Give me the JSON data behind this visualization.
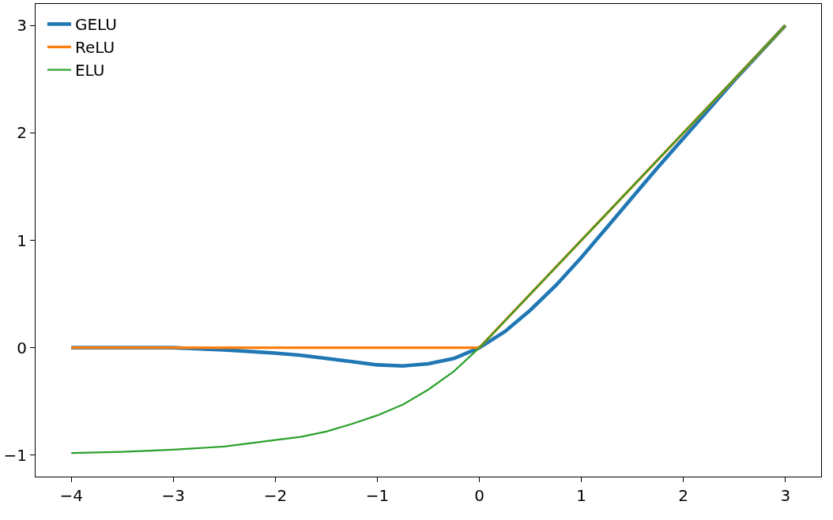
{
  "chart_data": {
    "type": "line",
    "series": [
      {
        "name": "GELU",
        "color": "#1f77b4",
        "x": [
          -4,
          -3.5,
          -3,
          -2.5,
          -2,
          -1.75,
          -1.5,
          -1.25,
          -1,
          -0.75,
          -0.5,
          -0.25,
          0,
          0.25,
          0.5,
          0.75,
          1,
          1.25,
          1.5,
          1.75,
          2,
          2.5,
          3
        ],
        "values": [
          0,
          0,
          0,
          -0.02,
          -0.05,
          -0.07,
          -0.1,
          -0.13,
          -0.16,
          -0.17,
          -0.15,
          -0.1,
          0,
          0.15,
          0.35,
          0.58,
          0.84,
          1.12,
          1.4,
          1.68,
          1.95,
          2.49,
          3
        ]
      },
      {
        "name": "ReLU",
        "color": "#ff7f0e",
        "x": [
          -4,
          0,
          3
        ],
        "values": [
          0,
          0,
          3
        ]
      },
      {
        "name": "ELU",
        "color": "#2ca02c",
        "x": [
          -4,
          -3.5,
          -3,
          -2.5,
          -2,
          -1.75,
          -1.5,
          -1.25,
          -1,
          -0.75,
          -0.5,
          -0.25,
          0,
          1,
          2,
          3
        ],
        "values": [
          -0.98,
          -0.97,
          -0.95,
          -0.92,
          -0.86,
          -0.83,
          -0.78,
          -0.71,
          -0.63,
          -0.53,
          -0.39,
          -0.22,
          0,
          1,
          2,
          3
        ]
      }
    ],
    "xlim": [
      -4.35,
      3.35
    ],
    "ylim": [
      -1.2,
      3.2
    ],
    "xticks": [
      {
        "value": -4,
        "label": "−4"
      },
      {
        "value": -3,
        "label": "−3"
      },
      {
        "value": -2,
        "label": "−2"
      },
      {
        "value": -1,
        "label": "−1"
      },
      0,
      1,
      2,
      3
    ],
    "yticks": [
      {
        "value": -1,
        "label": "−1"
      },
      0,
      1,
      2,
      3
    ],
    "legend": "top left",
    "marker": "none",
    "line_style": "solid"
  }
}
